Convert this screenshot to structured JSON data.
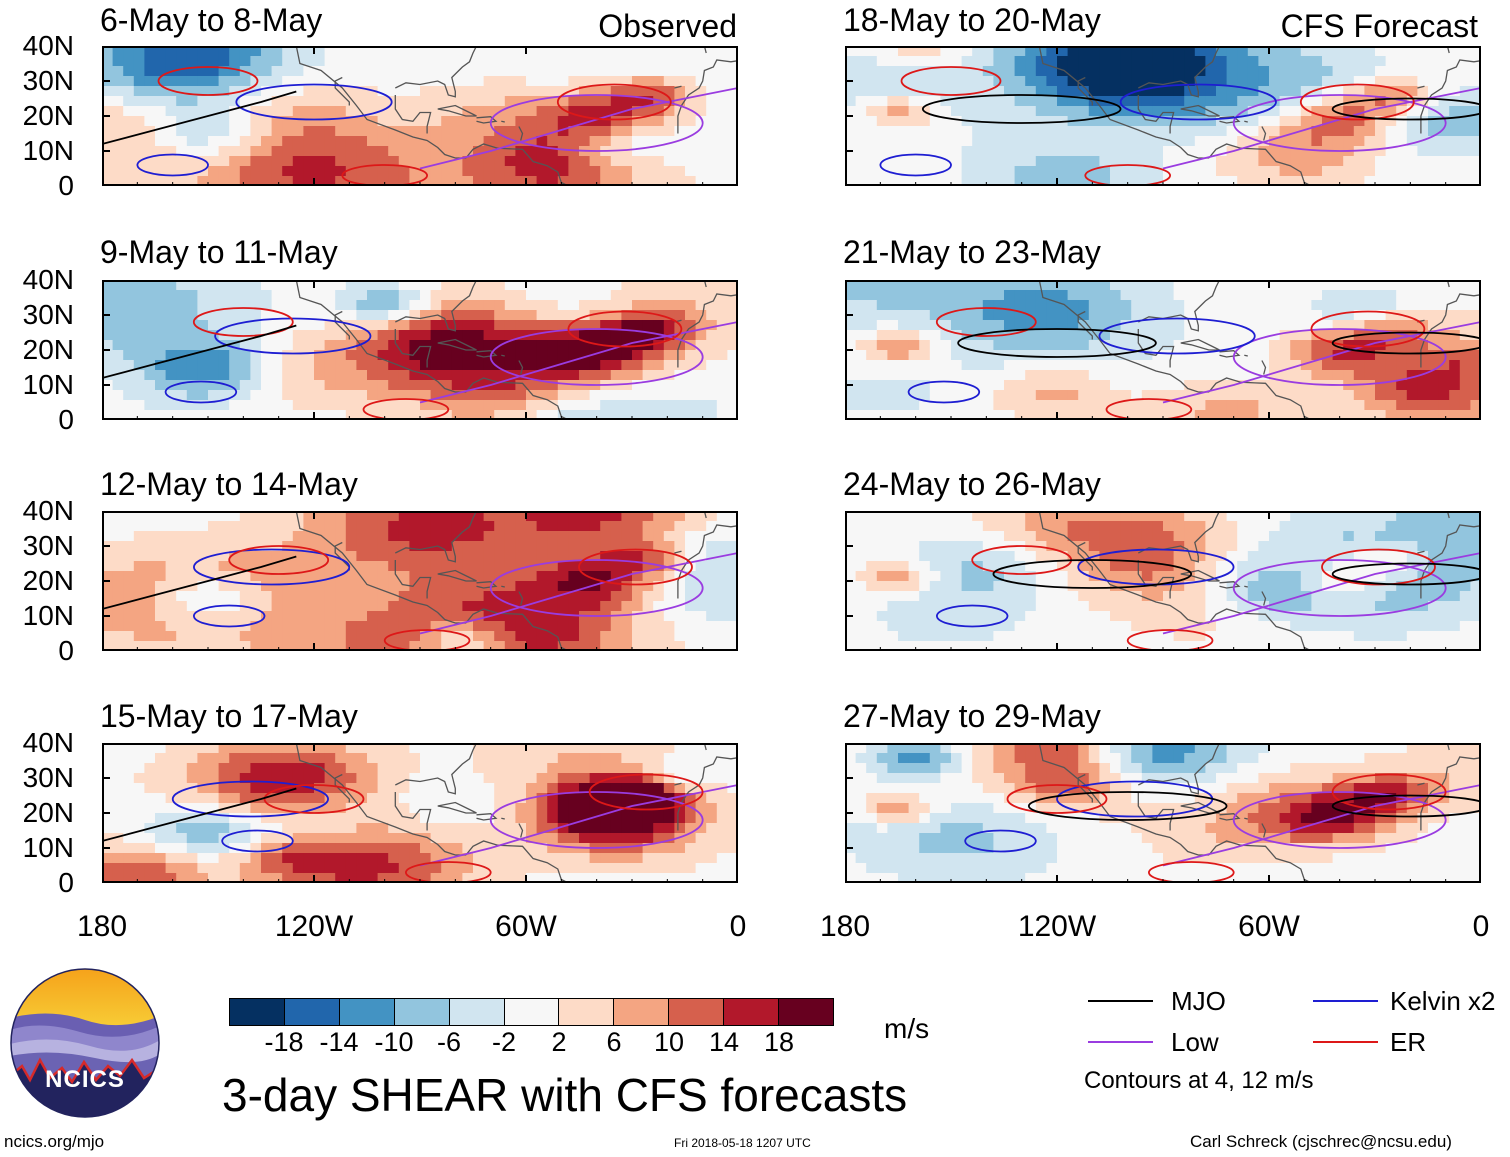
{
  "columns": {
    "left_label": "Observed",
    "right_label": "CFS Forecast"
  },
  "panel_titles": {
    "left": [
      "6-May to 8-May",
      "9-May to 11-May",
      "12-May to 14-May",
      "15-May to 17-May"
    ],
    "right": [
      "18-May to 20-May",
      "21-May to 23-May",
      "24-May to 26-May",
      "27-May to 29-May"
    ]
  },
  "colors": {
    "mjo": "#000000",
    "kelvin": "#1e1ed2",
    "low": "#9a3ce0",
    "er": "#dd1818",
    "land_outline": "#555555"
  },
  "legend": {
    "mjo": "MJO",
    "kelvin": "Kelvin x2",
    "low": "Low",
    "er": "ER",
    "contours": "Contours at 4, 12 m/s"
  },
  "colorbar": {
    "unit": "m/s",
    "colors": [
      "#053061",
      "#2166ac",
      "#4393c3",
      "#92c5de",
      "#d1e5f0",
      "#f7f7f7",
      "#fddbc7",
      "#f4a582",
      "#d6604d",
      "#b2182b",
      "#67001f"
    ]
  },
  "title": "3-day SHEAR with CFS forecasts",
  "footer": {
    "url": "ncics.org/mjo",
    "timestamp": "Fri 2018-05-18 1207 UTC",
    "author": "Carl Schreck (cjschrec@ncsu.edu)",
    "logo_text": "NCICS"
  },
  "chart_data": {
    "type": "heatmap",
    "title": "3-day SHEAR with CFS forecasts",
    "variable": "vertical wind shear anomaly",
    "unit": "m/s",
    "x_domain": [
      -180,
      0
    ],
    "y_domain": [
      0,
      40
    ],
    "x_ticks": [
      -180,
      -120,
      -60,
      0
    ],
    "x_tick_labels": [
      "180",
      "120W",
      "60W",
      "0"
    ],
    "y_ticks": [
      0,
      10,
      20,
      30,
      40
    ],
    "y_tick_labels": [
      "0",
      "10N",
      "20N",
      "30N",
      "40N"
    ],
    "colorbar_levels": [
      -18,
      -14,
      -10,
      -6,
      -2,
      2,
      6,
      10,
      14,
      18
    ],
    "colorbar_labels": [
      "-18",
      "-14",
      "-10",
      "-6",
      "-2",
      "2",
      "6",
      "10",
      "14",
      "18"
    ],
    "contour_levels": [
      4,
      12
    ],
    "legend_entries": [
      "MJO",
      "Kelvin x2",
      "Low",
      "ER"
    ],
    "panels": [
      {
        "title": "6-May to 8-May",
        "type": "Observed"
      },
      {
        "title": "9-May to 11-May",
        "type": "Observed"
      },
      {
        "title": "12-May to 14-May",
        "type": "Observed"
      },
      {
        "title": "15-May to 17-May",
        "type": "Observed"
      },
      {
        "title": "18-May to 20-May",
        "type": "CFS Forecast"
      },
      {
        "title": "21-May to 23-May",
        "type": "CFS Forecast"
      },
      {
        "title": "24-May to 26-May",
        "type": "CFS Forecast"
      },
      {
        "title": "27-May to 29-May",
        "type": "CFS Forecast"
      }
    ]
  }
}
